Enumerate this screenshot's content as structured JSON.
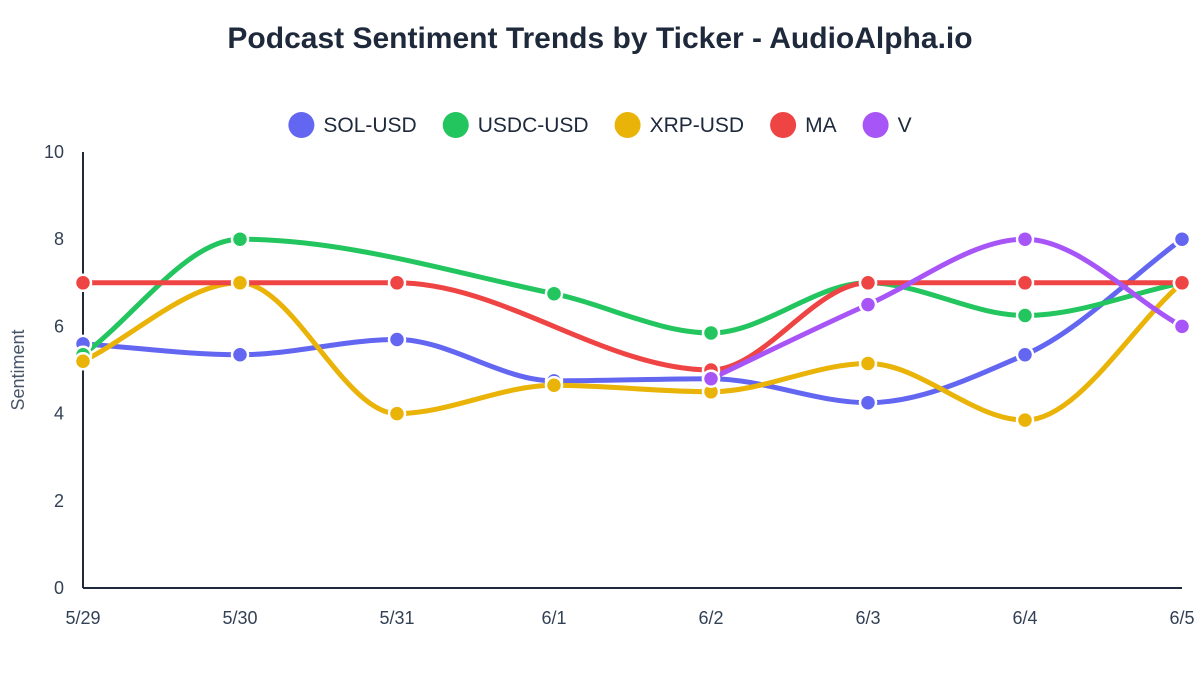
{
  "chart_data": {
    "type": "line",
    "title": "Podcast Sentiment Trends by Ticker - AudioAlpha.io",
    "xlabel": "",
    "ylabel": "Sentiment",
    "ylim": [
      0,
      10
    ],
    "yticks": [
      0,
      2,
      4,
      6,
      8,
      10
    ],
    "categories": [
      "5/29",
      "5/30",
      "5/31",
      "6/1",
      "6/2",
      "6/3",
      "6/4",
      "6/5"
    ],
    "legend_position": "top-center",
    "grid": false,
    "series": [
      {
        "name": "SOL-USD",
        "color": "#6366f1",
        "values": [
          5.6,
          5.35,
          5.7,
          4.75,
          4.8,
          4.25,
          5.35,
          8.0
        ]
      },
      {
        "name": "USDC-USD",
        "color": "#22c55e",
        "values": [
          5.35,
          8.0,
          null,
          6.75,
          5.85,
          7.0,
          6.25,
          7.0
        ]
      },
      {
        "name": "XRP-USD",
        "color": "#eab308",
        "values": [
          5.2,
          7.0,
          4.0,
          4.65,
          4.5,
          5.15,
          3.85,
          7.0
        ]
      },
      {
        "name": "MA",
        "color": "#ef4444",
        "values": [
          7.0,
          null,
          7.0,
          null,
          5.0,
          7.0,
          7.0,
          7.0
        ]
      },
      {
        "name": "V",
        "color": "#a855f7",
        "values": [
          null,
          null,
          null,
          null,
          4.8,
          6.5,
          8.0,
          6.0
        ]
      }
    ]
  }
}
